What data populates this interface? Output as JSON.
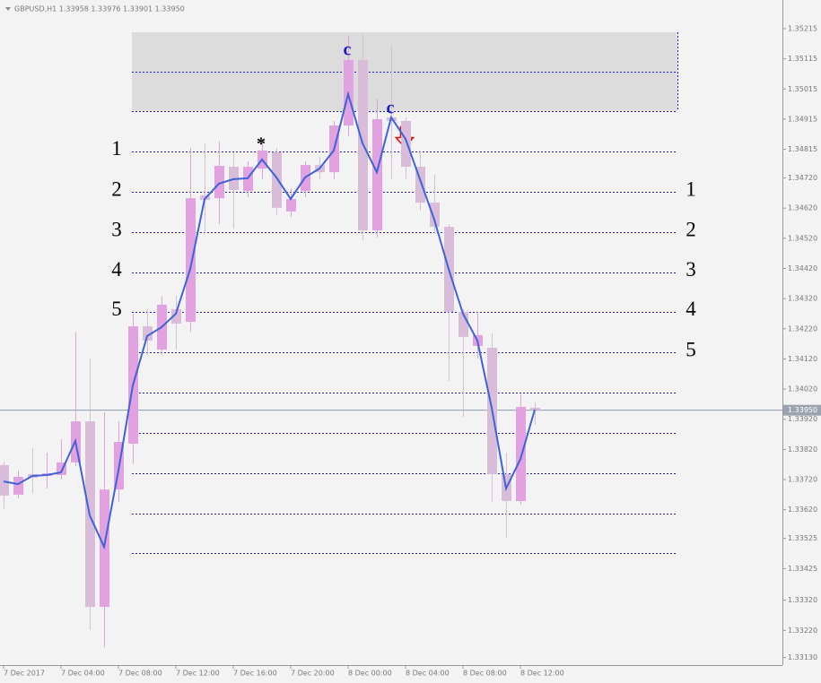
{
  "chart_data": {
    "type": "candlestick",
    "title": "GBPUSD,H1 1.33958 1.33976 1.33901 1.33950",
    "categories": [
      "7 Dec 2017",
      null,
      null,
      null,
      "7 Dec 04:00",
      null,
      null,
      null,
      "7 Dec 08:00",
      null,
      null,
      null,
      "7 Dec 12:00",
      null,
      null,
      null,
      "7 Dec 16:00",
      null,
      null,
      null,
      "7 Dec 20:00",
      null,
      null,
      null,
      "8 Dec 00:00",
      null,
      null,
      null,
      "8 Dec 04:00",
      null,
      null,
      null,
      "8 Dec 08:00",
      null,
      null,
      null,
      "8 Dec 12:00",
      null
    ],
    "open": [
      1.33768,
      1.3367,
      1.33738,
      1.33732,
      1.33735,
      1.33777,
      1.33913,
      1.33298,
      1.33687,
      1.33839,
      1.34228,
      1.34151,
      1.34285,
      1.34243,
      1.34662,
      1.34653,
      1.34757,
      1.34677,
      1.34751,
      1.34805,
      1.34609,
      1.34677,
      1.34763,
      1.34739,
      1.34894,
      1.35111,
      1.34546,
      1.34921,
      1.34909,
      1.34757,
      1.34638,
      1.34558,
      1.34276,
      1.34163,
      1.34157,
      1.33738,
      1.33649,
      1.33958
    ],
    "high": [
      1.3378,
      1.3375,
      1.33824,
      1.33809,
      1.33854,
      1.3421,
      1.34121,
      1.33943,
      1.33913,
      1.3427,
      1.34285,
      1.34329,
      1.34329,
      1.3482,
      1.34835,
      1.34841,
      1.34805,
      1.34775,
      1.34841,
      1.3482,
      1.34686,
      1.34775,
      1.3479,
      1.34909,
      1.35191,
      1.35197,
      1.34983,
      1.35161,
      1.34921,
      1.34811,
      1.34731,
      1.34567,
      1.34285,
      1.34276,
      1.34205,
      1.33809,
      1.34002,
      1.33976
    ],
    "low": [
      1.33622,
      1.33658,
      1.33675,
      1.3369,
      1.3372,
      1.33765,
      1.33221,
      1.33164,
      1.33646,
      1.33771,
      1.34136,
      1.34136,
      1.34151,
      1.3421,
      1.34537,
      1.34567,
      1.34552,
      1.34656,
      1.34716,
      1.34597,
      1.34591,
      1.34656,
      1.34716,
      1.34716,
      1.34858,
      1.34514,
      1.34523,
      1.34716,
      1.34716,
      1.34612,
      1.34537,
      1.34047,
      1.33928,
      1.34121,
      1.33646,
      1.33527,
      1.33637,
      1.33901
    ],
    "close": [
      1.33667,
      1.33729,
      1.33726,
      1.33741,
      1.33777,
      1.33913,
      1.33298,
      1.33687,
      1.33845,
      1.34228,
      1.34181,
      1.343,
      1.34237,
      1.34653,
      1.34647,
      1.3476,
      1.3468,
      1.34757,
      1.34811,
      1.34621,
      1.3465,
      1.34763,
      1.34739,
      1.34894,
      1.35111,
      1.34546,
      1.34915,
      1.34909,
      1.34757,
      1.34638,
      1.34558,
      1.34276,
      1.34193,
      1.34199,
      1.33738,
      1.33649,
      1.33961,
      1.3395
    ],
    "up_color": "#e2a2e2",
    "down_color": "#d9bcd9",
    "line": {
      "color": "#3f63d6",
      "values": [
        1.33714,
        1.33705,
        1.33732,
        1.33735,
        1.33744,
        1.33848,
        1.33601,
        1.33497,
        1.3375,
        1.34032,
        1.34196,
        1.34225,
        1.3427,
        1.34418,
        1.3465,
        1.34701,
        1.34716,
        1.34719,
        1.34781,
        1.34722,
        1.3465,
        1.34722,
        1.34751,
        1.34811,
        1.34998,
        1.34835,
        1.34739,
        1.34921,
        1.34849,
        1.34716,
        1.34582,
        1.34418,
        1.3427,
        1.34181,
        1.33958,
        1.3369,
        1.33788,
        1.33952
      ]
    },
    "zone": [
      1.35203,
      1.34942
    ],
    "zone_color": "#dcdcdc",
    "levels": [
      1.35072,
      1.34942,
      1.34808,
      1.34674,
      1.3454,
      1.34407,
      1.34276,
      1.34142,
      1.34008,
      1.33875,
      1.33741,
      1.33607,
      1.33476
    ],
    "level_color": "#1c1cc8",
    "level_labels_left": [
      "1",
      "2",
      "3",
      "4",
      "5"
    ],
    "level_labels_right": [
      "1",
      "2",
      "3",
      "4",
      "5"
    ],
    "annotations": [
      {
        "text": "*",
        "color": "#000000"
      },
      {
        "text": "c",
        "color": "#1c1cc8"
      },
      {
        "text": "c",
        "color": "#1c1cc8"
      }
    ],
    "current_price": {
      "value": 1.3395,
      "label": "1.33950"
    },
    "ylim": [
      1.33105,
      1.3531
    ],
    "yticks": [
      {
        "value": 1.35215,
        "label": "1.35215"
      },
      {
        "value": 1.35115,
        "label": "1.35115"
      },
      {
        "value": 1.35015,
        "label": "1.35015"
      },
      {
        "value": 1.34915,
        "label": "1.34915"
      },
      {
        "value": 1.34815,
        "label": "1.34815"
      },
      {
        "value": 1.3472,
        "label": "1.34720"
      },
      {
        "value": 1.3462,
        "label": "1.34620"
      },
      {
        "value": 1.3452,
        "label": "1.34520"
      },
      {
        "value": 1.3442,
        "label": "1.34420"
      },
      {
        "value": 1.3432,
        "label": "1.34320"
      },
      {
        "value": 1.3422,
        "label": "1.34220"
      },
      {
        "value": 1.3412,
        "label": "1.34120"
      },
      {
        "value": 1.3402,
        "label": "1.34020"
      },
      {
        "value": 1.3392,
        "label": "1.33920"
      },
      {
        "value": 1.3382,
        "label": "1.33820"
      },
      {
        "value": 1.3372,
        "label": "1.33720"
      },
      {
        "value": 1.3362,
        "label": "1.33620"
      },
      {
        "value": 1.33525,
        "label": "1.33525"
      },
      {
        "value": 1.33425,
        "label": "1.33425"
      },
      {
        "value": 1.3332,
        "label": "1.33320"
      },
      {
        "value": 1.3322,
        "label": "1.33220"
      },
      {
        "value": 1.3313,
        "label": "1.33130"
      }
    ]
  }
}
